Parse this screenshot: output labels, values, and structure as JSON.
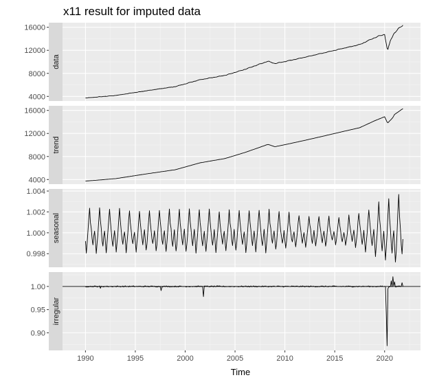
{
  "chart_data": {
    "type": "line",
    "title": "x11 result for imputed data",
    "xlabel": "Time",
    "x_range": [
      1987.7,
      2023.6
    ],
    "x_ticks": [
      1990,
      1995,
      2000,
      2005,
      2010,
      2015,
      2020
    ],
    "x_tick_labels": [
      "1990",
      "1995",
      "2000",
      "2005",
      "2010",
      "2015",
      "2020"
    ],
    "grid": true,
    "frequency": "monthly",
    "start": 1990.0,
    "end": 2021.83,
    "panels": [
      {
        "name": "data",
        "ylim": [
          3200,
          16800
        ],
        "y_ticks": [
          4000,
          8000,
          12000,
          16000
        ],
        "y_tick_labels": [
          "4000",
          "8000",
          "12000",
          "16000"
        ],
        "trend_knots": [
          [
            1990.0,
            3730
          ],
          [
            1993.0,
            4150
          ],
          [
            1996.0,
            4950
          ],
          [
            1999.0,
            5700
          ],
          [
            2001.5,
            6900
          ],
          [
            2004.0,
            7650
          ],
          [
            2006.0,
            8700
          ],
          [
            2008.3,
            10100
          ],
          [
            2009.0,
            9700
          ],
          [
            2010.0,
            10050
          ],
          [
            2012.0,
            10800
          ],
          [
            2015.0,
            12000
          ],
          [
            2017.5,
            13000
          ],
          [
            2019.0,
            14200
          ],
          [
            2020.0,
            14800
          ],
          [
            2020.3,
            11900
          ],
          [
            2020.6,
            13800
          ],
          [
            2021.0,
            15100
          ],
          [
            2021.83,
            16400
          ]
        ]
      },
      {
        "name": "trend",
        "ylim": [
          3200,
          16800
        ],
        "y_ticks": [
          4000,
          8000,
          12000,
          16000
        ],
        "y_tick_labels": [
          "4000",
          "8000",
          "12000",
          "16000"
        ],
        "trend_knots": [
          [
            1990.0,
            3730
          ],
          [
            1993.0,
            4150
          ],
          [
            1996.0,
            4950
          ],
          [
            1999.0,
            5700
          ],
          [
            2001.5,
            6900
          ],
          [
            2004.0,
            7650
          ],
          [
            2006.0,
            8700
          ],
          [
            2008.3,
            10100
          ],
          [
            2009.0,
            9700
          ],
          [
            2010.0,
            10050
          ],
          [
            2012.0,
            10800
          ],
          [
            2015.0,
            12000
          ],
          [
            2017.5,
            13000
          ],
          [
            2019.0,
            14200
          ],
          [
            2020.0,
            14900
          ],
          [
            2020.3,
            13800
          ],
          [
            2020.8,
            14700
          ],
          [
            2021.0,
            15300
          ],
          [
            2021.83,
            16300
          ]
        ]
      },
      {
        "name": "seasonal",
        "ylim": [
          0.9967,
          1.0042
        ],
        "y_ticks": [
          0.998,
          1.0,
          1.002,
          1.004
        ],
        "y_tick_labels": [
          "0.998",
          "1.000",
          "1.002",
          "1.004"
        ],
        "seasonal_pattern": [
          -0.0008,
          -0.0018,
          -0.001,
          0.0,
          0.0012,
          0.0022,
          0.001,
          0.0003,
          -0.0006,
          -0.0012,
          -0.0004,
          0.0002
        ],
        "amplitude_knots": [
          [
            1990.0,
            1.05
          ],
          [
            1992.0,
            1.05
          ],
          [
            1996.0,
            0.95
          ],
          [
            2000.0,
            1.05
          ],
          [
            2004.0,
            0.95
          ],
          [
            2008.0,
            1.0
          ],
          [
            2012.0,
            0.75
          ],
          [
            2016.0,
            0.65
          ],
          [
            2018.0,
            0.95
          ],
          [
            2020.0,
            1.45
          ],
          [
            2021.83,
            1.75
          ]
        ]
      },
      {
        "name": "irregular",
        "ylim": [
          0.862,
          1.031
        ],
        "y_ticks": [
          0.9,
          0.95,
          1.0
        ],
        "y_tick_labels": [
          "0.90",
          "0.95",
          "1.00"
        ],
        "baseline": 1.0,
        "noise": 0.0013,
        "spikes": [
          [
            1991.5,
            0.996
          ],
          [
            1997.6,
            0.991
          ],
          [
            2001.8,
            0.978
          ],
          [
            2020.17,
            0.943
          ],
          [
            2020.25,
            0.872
          ],
          [
            2020.33,
            0.995
          ],
          [
            2020.67,
            1.012
          ],
          [
            2020.83,
            1.021
          ],
          [
            2021.0,
            1.01
          ],
          [
            2021.75,
            1.008
          ]
        ]
      }
    ]
  }
}
